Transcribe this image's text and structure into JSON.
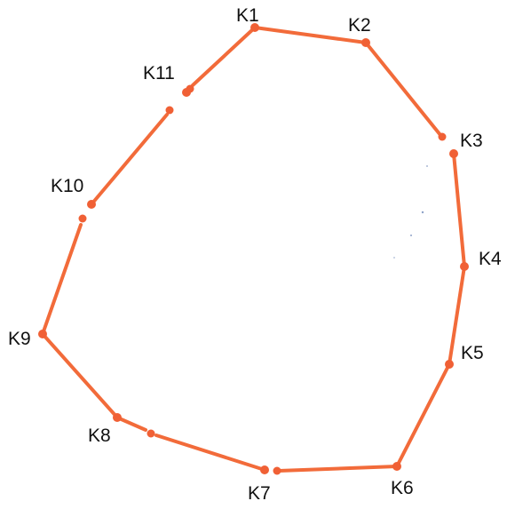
{
  "diagram": {
    "stroke_color": "#f26b3a",
    "point_color": "#f06035",
    "label_color": "#111111",
    "points": [
      {
        "id": "K1",
        "label": "K1"
      },
      {
        "id": "K2",
        "label": "K2"
      },
      {
        "id": "K3",
        "label": "K3"
      },
      {
        "id": "K4",
        "label": "K4"
      },
      {
        "id": "K5",
        "label": "K5"
      },
      {
        "id": "K6",
        "label": "K6"
      },
      {
        "id": "K7",
        "label": "K7"
      },
      {
        "id": "K8",
        "label": "K8"
      },
      {
        "id": "K9",
        "label": "K9"
      },
      {
        "id": "K10",
        "label": "K10"
      },
      {
        "id": "K11",
        "label": "K11"
      }
    ]
  }
}
